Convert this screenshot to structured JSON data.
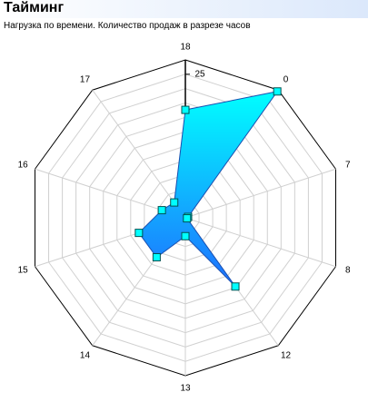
{
  "chart_data": {
    "type": "radar",
    "title": "Тайминг",
    "subtitle": "Нагрузка по времени. Количество продаж в разрезе часов",
    "categories": [
      "18",
      "0",
      "7",
      "8",
      "12",
      "13",
      "14",
      "15",
      "16",
      "17"
    ],
    "values": [
      18.8,
      27.2,
      0.5,
      0.3,
      14.8,
      3.2,
      8.5,
      8.5,
      4.3,
      3.3
    ],
    "ylim": [
      0,
      27.5
    ],
    "yticks": [
      25
    ],
    "grid": true,
    "color": "#00ffff"
  }
}
